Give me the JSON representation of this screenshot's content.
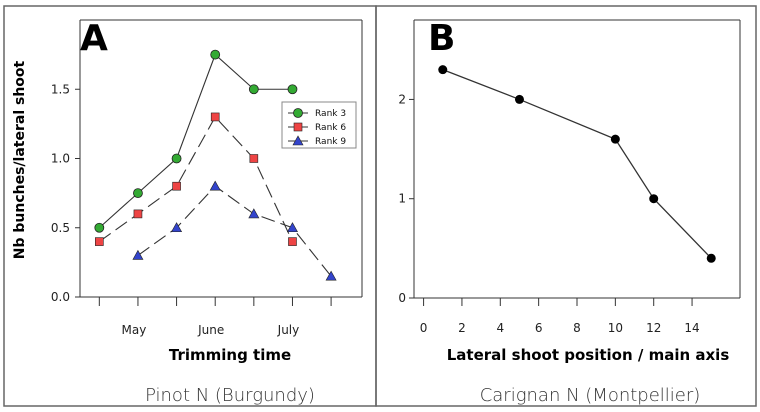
{
  "panels": [
    {
      "letter": "A",
      "caption": "Pinot N (Burgundy)",
      "ylabel": "Nb bunches/lateral shoot",
      "xlabel": "Trimming time"
    },
    {
      "letter": "B",
      "caption": "Carignan N (Montpellier)",
      "xlabel": "Lateral shoot position / main axis"
    }
  ],
  "chart_data": [
    {
      "type": "line",
      "x": [
        1,
        2,
        3,
        4,
        5,
        6,
        7
      ],
      "xlim": [
        0.5,
        7.8
      ],
      "x_tick_labels": [
        {
          "x": 2,
          "label": "May"
        },
        {
          "x": 4,
          "label": "June"
        },
        {
          "x": 6,
          "label": "July"
        }
      ],
      "ylim": [
        0,
        2.0
      ],
      "yticks": [
        "0.0",
        "0.5",
        "1.0",
        "1.5"
      ],
      "yticks_values": [
        0,
        0.5,
        1.0,
        1.5
      ],
      "xlabel": "Trimming time",
      "ylabel": "Nb bunches/lateral shoot",
      "legend_position": "right",
      "series": [
        {
          "name": "Rank 3",
          "marker": "circle",
          "color": "#33aa33",
          "dash": "solid",
          "points": [
            [
              1,
              0.5
            ],
            [
              2,
              0.75
            ],
            [
              3,
              1.0
            ],
            [
              4,
              1.75
            ],
            [
              5,
              1.5
            ],
            [
              6,
              1.5
            ]
          ]
        },
        {
          "name": "Rank 6",
          "marker": "square",
          "color": "#ee4444",
          "dash": "long",
          "points": [
            [
              1,
              0.4
            ],
            [
              2,
              0.6
            ],
            [
              3,
              0.8
            ],
            [
              4,
              1.3
            ],
            [
              5,
              1.0
            ],
            [
              6,
              0.4
            ]
          ]
        },
        {
          "name": "Rank 9",
          "marker": "triangle",
          "color": "#3344cc",
          "dash": "long",
          "points": [
            [
              2,
              0.3
            ],
            [
              3,
              0.5
            ],
            [
              4,
              0.8
            ],
            [
              5,
              0.6
            ],
            [
              6,
              0.5
            ],
            [
              7,
              0.15
            ]
          ]
        }
      ]
    },
    {
      "type": "line",
      "xlim": [
        -0.5,
        16.5
      ],
      "ylim": [
        0,
        2.8
      ],
      "xticks": [
        0,
        2,
        4,
        6,
        8,
        10,
        12,
        14
      ],
      "yticks": [
        0,
        1,
        2
      ],
      "xlabel": "Lateral shoot position / main axis",
      "series": [
        {
          "marker": "circle",
          "color": "#000000",
          "points": [
            [
              1,
              2.3
            ],
            [
              5,
              2.0
            ],
            [
              10,
              1.6
            ],
            [
              12,
              1.0
            ],
            [
              15,
              0.4
            ]
          ]
        }
      ]
    }
  ]
}
